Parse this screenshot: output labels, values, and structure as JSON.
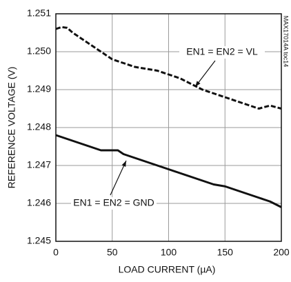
{
  "chart_data": {
    "type": "line",
    "x_label": "LOAD CURRENT (µA)",
    "y_label": "REFERENCE VOLTAGE (V)",
    "side_note": "MAX17014A toc14",
    "xlim": [
      0,
      200
    ],
    "xticks": [
      0,
      50,
      100,
      150,
      200
    ],
    "ylim": [
      1.245,
      1.251
    ],
    "yticks": [
      1.245,
      1.246,
      1.247,
      1.248,
      1.249,
      {
        "value": 1.25,
        "label": "1.250"
      },
      1.251
    ],
    "grid": true,
    "series": [
      {
        "name": "EN1 = EN2 = VL",
        "color": "#111111",
        "dash": true,
        "x": [
          0,
          5,
          10,
          15,
          20,
          30,
          40,
          50,
          60,
          70,
          80,
          90,
          100,
          110,
          120,
          130,
          140,
          150,
          160,
          170,
          180,
          190,
          200
        ],
        "values": [
          1.2506,
          1.25065,
          1.25063,
          1.2505,
          1.2504,
          1.2502,
          1.25,
          1.2498,
          1.2497,
          1.2496,
          1.24955,
          1.2495,
          1.2494,
          1.2493,
          1.24915,
          1.249,
          1.2489,
          1.2488,
          1.2487,
          1.2486,
          1.2485,
          1.24858,
          1.2485
        ]
      },
      {
        "name": "EN1 = EN2 = GND",
        "color": "#111111",
        "dash": false,
        "x": [
          0,
          10,
          20,
          30,
          40,
          50,
          55,
          60,
          70,
          80,
          90,
          100,
          110,
          120,
          130,
          140,
          150,
          160,
          170,
          180,
          190,
          200
        ],
        "values": [
          1.2478,
          1.2477,
          1.2476,
          1.2475,
          1.2474,
          1.2474,
          1.2474,
          1.2473,
          1.2472,
          1.2471,
          1.247,
          1.2469,
          1.2468,
          1.2467,
          1.2466,
          1.2465,
          1.24645,
          1.24635,
          1.24625,
          1.24615,
          1.24605,
          1.2459
        ]
      }
    ]
  }
}
